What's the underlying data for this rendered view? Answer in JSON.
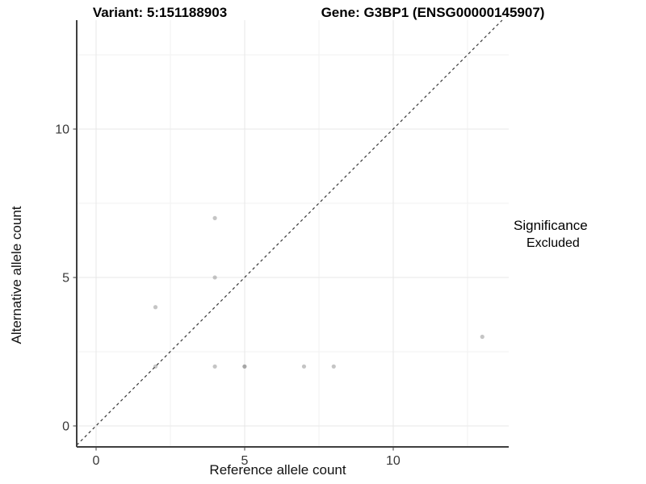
{
  "titles": {
    "variant": "Variant: 5:151188903",
    "gene": "Gene: G3BP1 (ENSG00000145907)"
  },
  "axis_labels": {
    "x": "Reference allele count",
    "y": "Alternative allele count"
  },
  "legend": {
    "title": "Significance",
    "items": [
      {
        "label": "Excluded",
        "color": "#b3b3b3"
      }
    ]
  },
  "chart_data": {
    "type": "scatter",
    "title_left": "Variant: 5:151188903",
    "title_right": "Gene: G3BP1 (ENSG00000145907)",
    "xlabel": "Reference allele count",
    "ylabel": "Alternative allele count",
    "xlim": [
      -0.65,
      13.89
    ],
    "ylim": [
      -0.71,
      13.67
    ],
    "x_major_ticks": [
      0,
      5,
      10
    ],
    "y_major_ticks": [
      0,
      5,
      10
    ],
    "x_minor_ticks": [
      2.5,
      7.5,
      12.5
    ],
    "y_minor_ticks": [
      2.5,
      7.5,
      12.5
    ],
    "grid": true,
    "legend_position": "right",
    "reference_line": {
      "type": "identity",
      "slope": 1,
      "intercept": 0,
      "style": "dashed",
      "color": "#383838"
    },
    "series": [
      {
        "name": "Excluded",
        "color": "#8c8c8c",
        "opacity": 0.5,
        "points": [
          {
            "x": 2,
            "y": 2
          },
          {
            "x": 2,
            "y": 4
          },
          {
            "x": 4,
            "y": 2
          },
          {
            "x": 4,
            "y": 5
          },
          {
            "x": 4,
            "y": 7
          },
          {
            "x": 5,
            "y": 2
          },
          {
            "x": 5,
            "y": 2
          },
          {
            "x": 7,
            "y": 2
          },
          {
            "x": 8,
            "y": 2
          },
          {
            "x": 13,
            "y": 3
          }
        ]
      }
    ],
    "colors": {
      "grid_major": "#e7e7e7",
      "grid_minor": "#f2f2f2",
      "axis_line": "#3f3f3f",
      "tick_text": "#383838"
    }
  }
}
